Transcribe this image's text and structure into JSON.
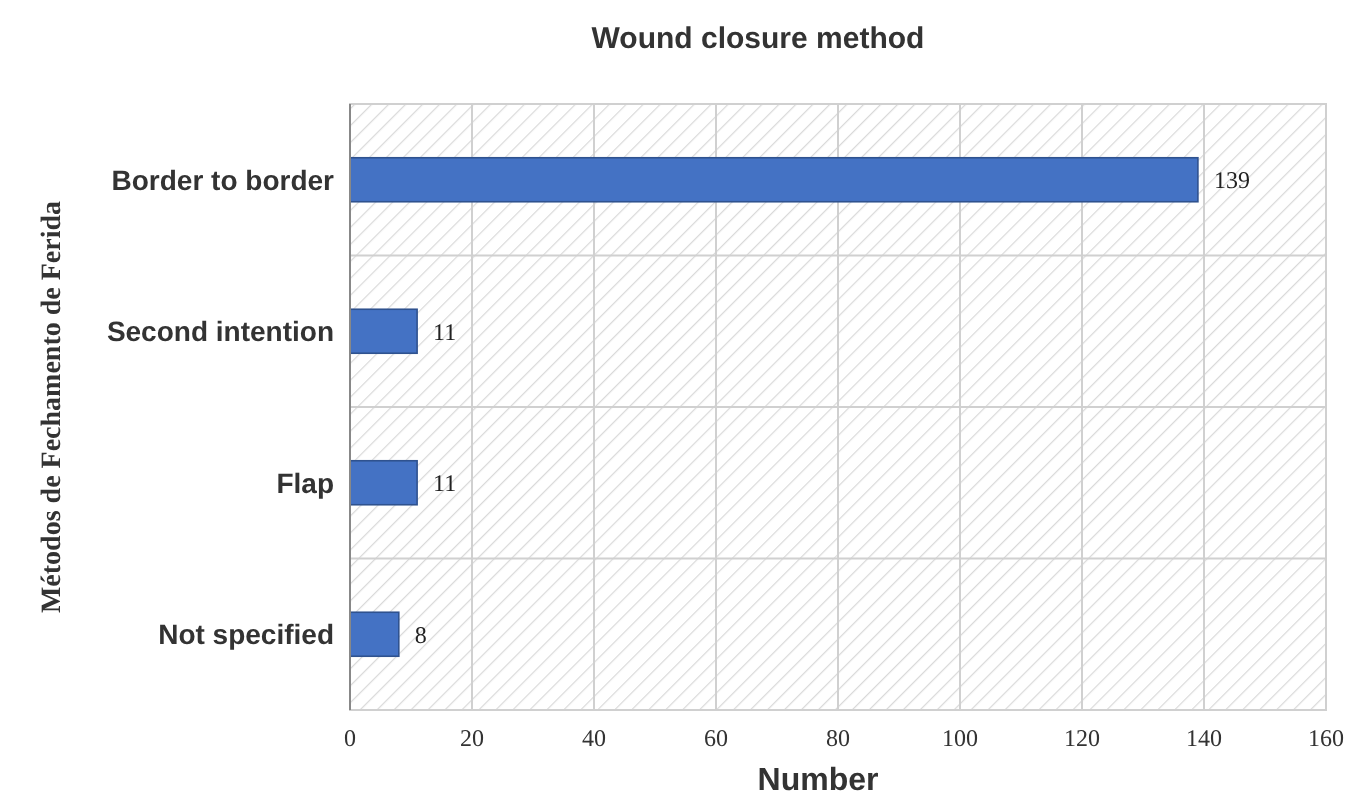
{
  "chart_data": {
    "type": "bar",
    "orientation": "horizontal",
    "title": "Wound closure method",
    "xlabel": "Number",
    "ylabel": "Métodos de Fechamento de Ferida",
    "categories": [
      "Border to border",
      "Second intention",
      "Flap",
      "Not specified"
    ],
    "values": [
      139,
      11,
      11,
      8
    ],
    "color": "#4472c4",
    "data_labels": true,
    "xlim": [
      0,
      160
    ],
    "xticks": [
      0,
      20,
      40,
      60,
      80,
      100,
      120,
      140,
      160
    ],
    "grid": true
  }
}
